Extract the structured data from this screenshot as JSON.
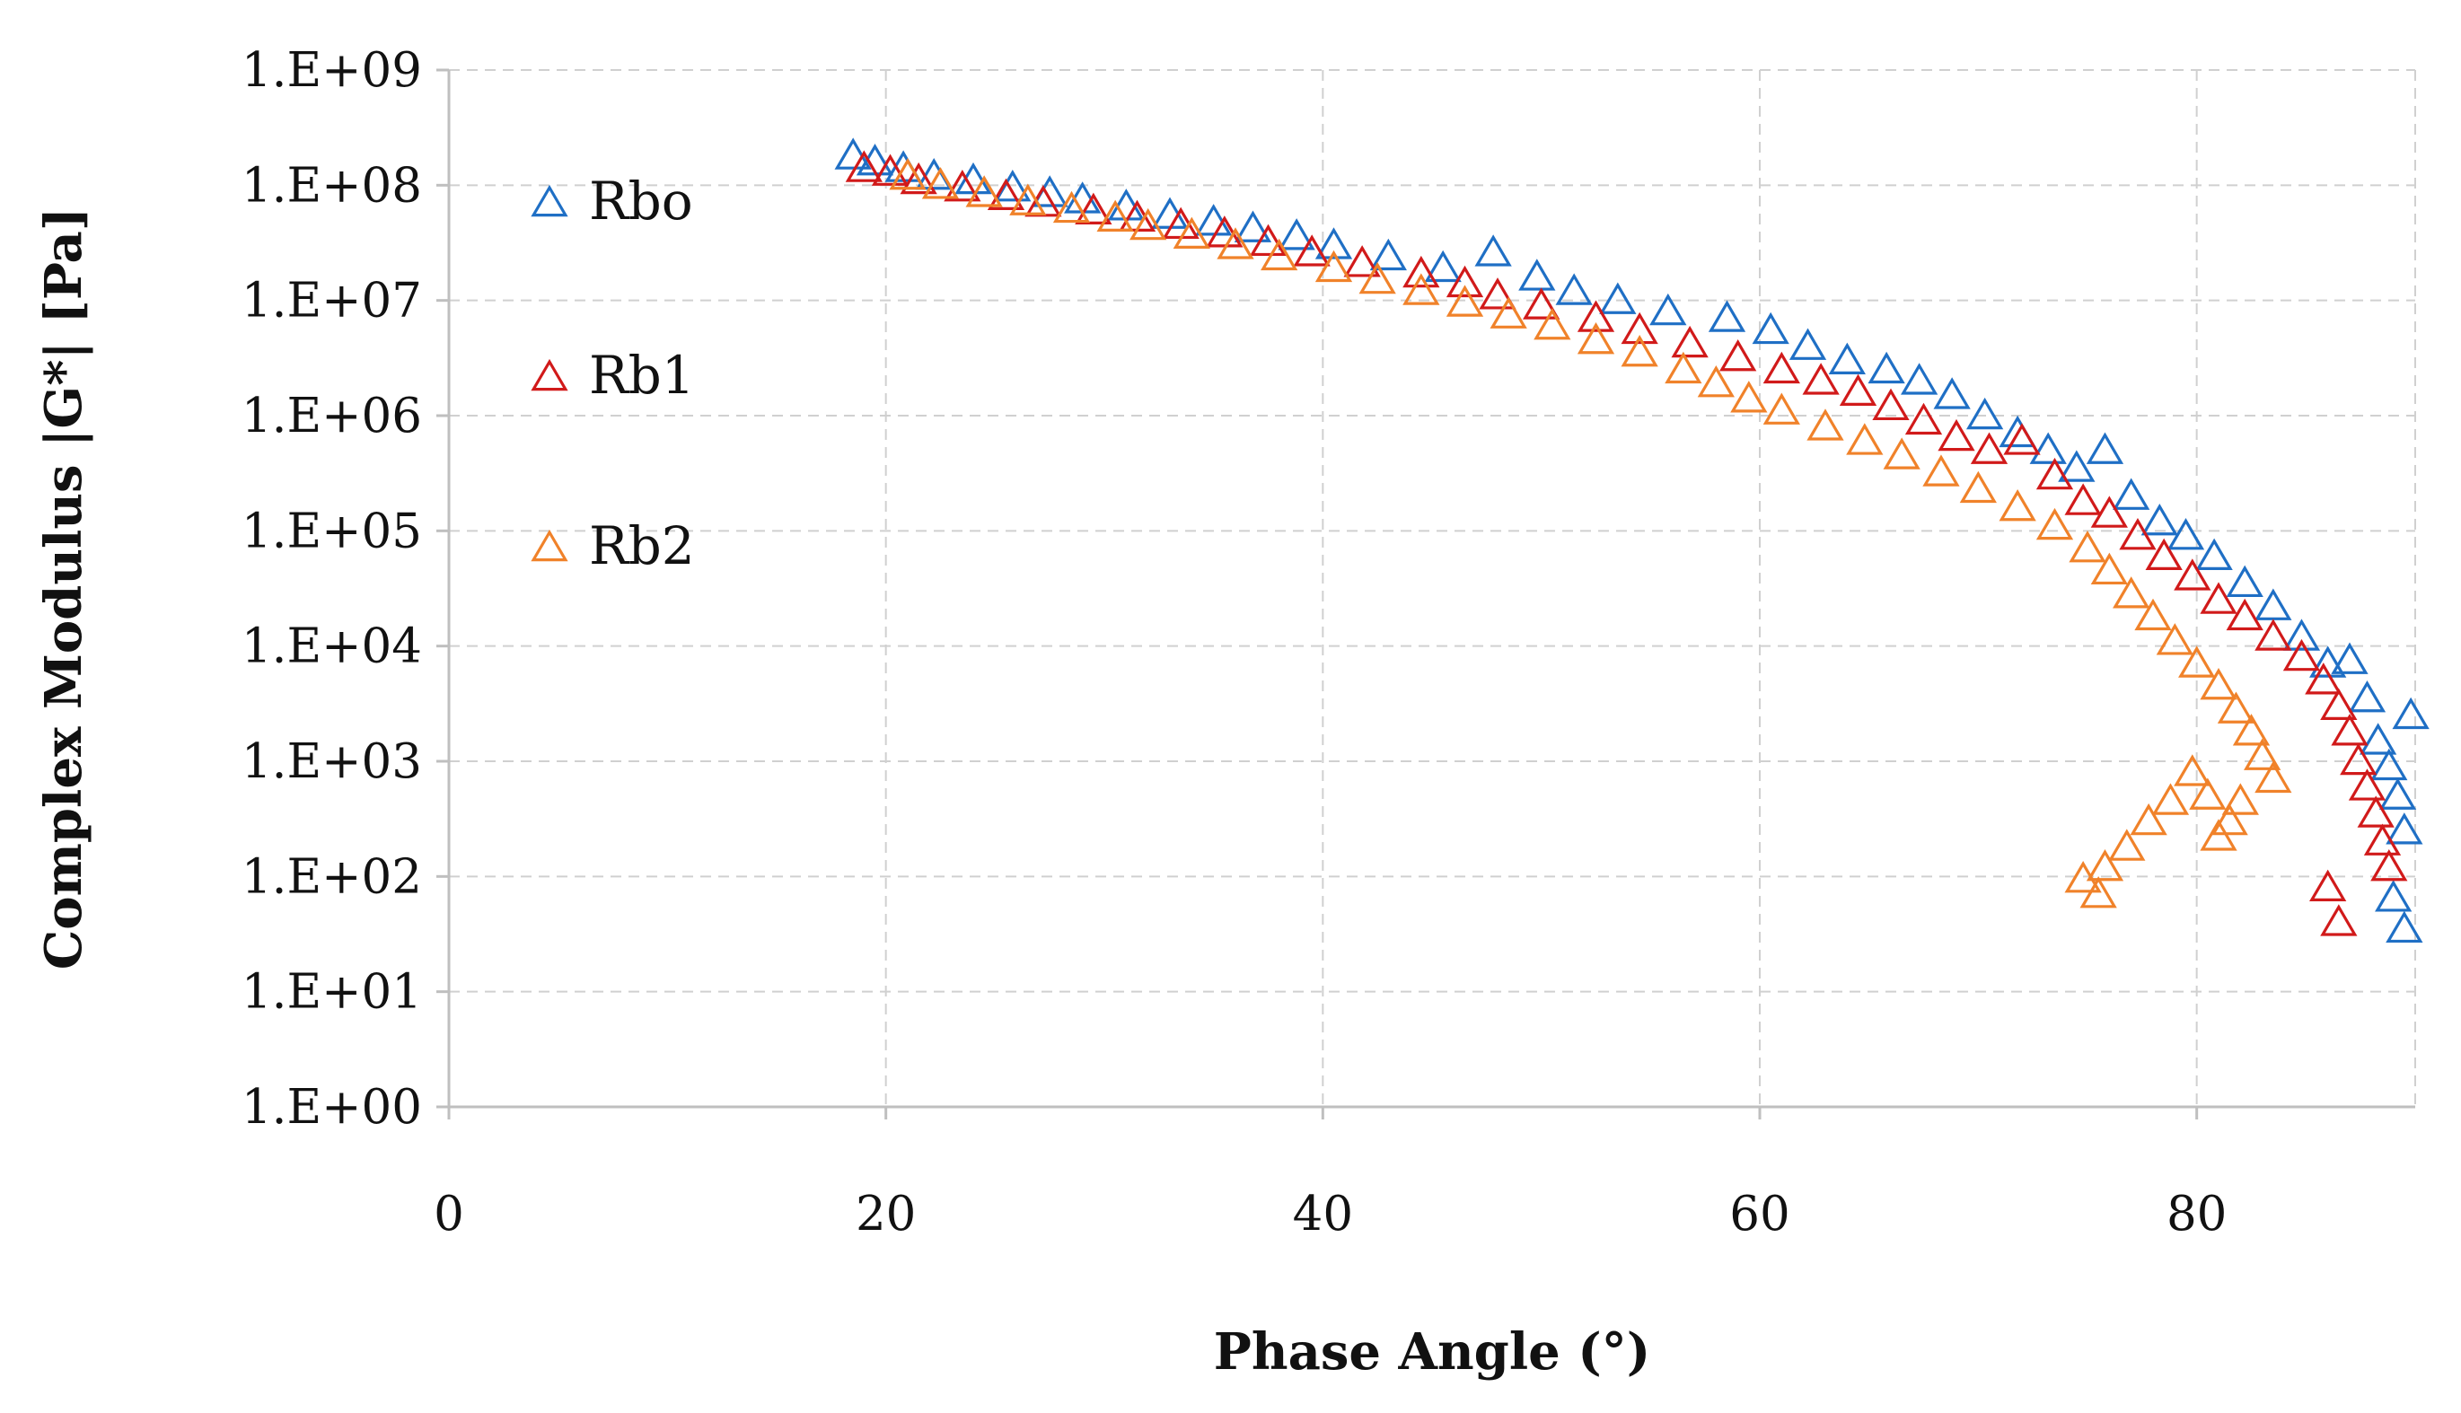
{
  "chart_data": {
    "type": "scatter",
    "title": "",
    "xlabel": "Phase Angle (°)",
    "ylabel": "Complex Modulus |G*| [Pa]",
    "xlim": [
      0,
      90
    ],
    "ylim": [
      1,
      1000000000
    ],
    "yscale": "log",
    "x_ticks": [
      0,
      20,
      40,
      60,
      80
    ],
    "x_tick_labels": [
      "0",
      "20",
      "40",
      "60",
      "80"
    ],
    "y_ticks": [
      1,
      10,
      100,
      1000,
      10000,
      100000,
      1000000,
      10000000,
      100000000,
      1000000000
    ],
    "y_tick_labels": [
      "1.E+00",
      "1.E+01",
      "1.E+02",
      "1.E+03",
      "1.E+04",
      "1.E+05",
      "1.E+06",
      "1.E+07",
      "1.E+08",
      "1.E+09"
    ],
    "grid": true,
    "marker": "open-triangle",
    "legend_position": "left-inside",
    "series": [
      {
        "name": "Rbo",
        "color": "#1f6fc5",
        "x": [
          18.5,
          19.5,
          20.8,
          22.2,
          24.0,
          25.8,
          27.5,
          29.0,
          31.0,
          33.0,
          35.0,
          36.8,
          38.8,
          40.5,
          43.0,
          45.5,
          47.8,
          49.8,
          51.5,
          53.5,
          55.8,
          58.5,
          60.5,
          62.2,
          64.0,
          65.8,
          67.3,
          68.8,
          70.3,
          71.8,
          73.2,
          74.5,
          75.8,
          77.0,
          78.3,
          79.5,
          80.8,
          82.2,
          83.5,
          84.8,
          86.0,
          87.0,
          87.8,
          88.3,
          88.8,
          89.2,
          89.5,
          89.8,
          89.0,
          89.5
        ],
        "y": [
          180000000,
          160000000,
          140000000,
          120000000,
          110000000,
          95000000,
          85000000,
          75000000,
          65000000,
          55000000,
          48000000,
          42000000,
          36000000,
          30000000,
          24000000,
          19000000,
          26000000,
          16000000,
          12000000,
          10000000,
          8000000,
          7000000,
          5500000,
          4000000,
          3000000,
          2500000,
          2000000,
          1500000,
          1000000,
          700000,
          500000,
          350000,
          500000,
          200000,
          120000,
          90000,
          60000,
          35000,
          22000,
          12000,
          7000,
          7500,
          3500,
          1500,
          900,
          500,
          250,
          2500,
          65,
          35
        ]
      },
      {
        "name": "Rb1",
        "color": "#d11a1a",
        "x": [
          19.0,
          20.2,
          21.5,
          23.5,
          25.5,
          27.2,
          29.5,
          31.5,
          33.5,
          35.5,
          37.5,
          39.5,
          41.8,
          44.5,
          46.5,
          48.0,
          50.0,
          52.5,
          54.5,
          56.8,
          59.0,
          61.0,
          62.8,
          64.5,
          66.0,
          67.5,
          69.0,
          70.5,
          72.0,
          73.5,
          74.8,
          76.0,
          77.3,
          78.5,
          79.8,
          81.0,
          82.2,
          83.5,
          84.8,
          85.8,
          86.5,
          87.0,
          87.4,
          87.8,
          88.2,
          88.5,
          88.8,
          86.0,
          86.5
        ],
        "y": [
          140000000,
          130000000,
          110000000,
          95000000,
          80000000,
          70000000,
          60000000,
          52000000,
          45000000,
          38000000,
          32000000,
          26000000,
          21000000,
          17000000,
          14000000,
          11000000,
          9000000,
          7000000,
          5500000,
          4200000,
          3200000,
          2500000,
          2000000,
          1600000,
          1200000,
          900000,
          650000,
          500000,
          600000,
          300000,
          180000,
          140000,
          90000,
          60000,
          40000,
          25000,
          18000,
          12000,
          8000,
          5000,
          3000,
          1800,
          1000,
          600,
          350,
          200,
          120,
          80,
          40
        ]
      },
      {
        "name": "Rb2",
        "color": "#f0822a",
        "x": [
          21.0,
          22.5,
          24.5,
          26.5,
          28.5,
          30.5,
          32.0,
          34.0,
          36.0,
          38.0,
          40.5,
          42.5,
          44.5,
          46.5,
          48.5,
          50.5,
          52.5,
          54.5,
          56.5,
          58.0,
          59.5,
          61.0,
          63.0,
          64.8,
          66.5,
          68.3,
          70.0,
          71.8,
          73.5,
          75.0,
          76.0,
          77.0,
          78.0,
          79.0,
          80.0,
          81.0,
          81.8,
          82.5,
          83.0,
          83.5,
          82.0,
          81.5,
          81.0,
          80.5,
          79.8,
          78.8,
          77.8,
          76.8,
          75.8,
          74.8,
          75.5
        ],
        "y": [
          120000000,
          100000000,
          85000000,
          72000000,
          62000000,
          52000000,
          44000000,
          37000000,
          30000000,
          24000000,
          19000000,
          15000000,
          12000000,
          9500000,
          7500000,
          6000000,
          4500000,
          3500000,
          2500000,
          1900000,
          1400000,
          1100000,
          800000,
          600000,
          450000,
          320000,
          230000,
          160000,
          110000,
          70000,
          45000,
          28000,
          18000,
          11000,
          7000,
          4500,
          2800,
          1800,
          1100,
          700,
          450,
          300,
          220,
          500,
          800,
          450,
          300,
          180,
          120,
          95,
          70
        ]
      }
    ]
  }
}
